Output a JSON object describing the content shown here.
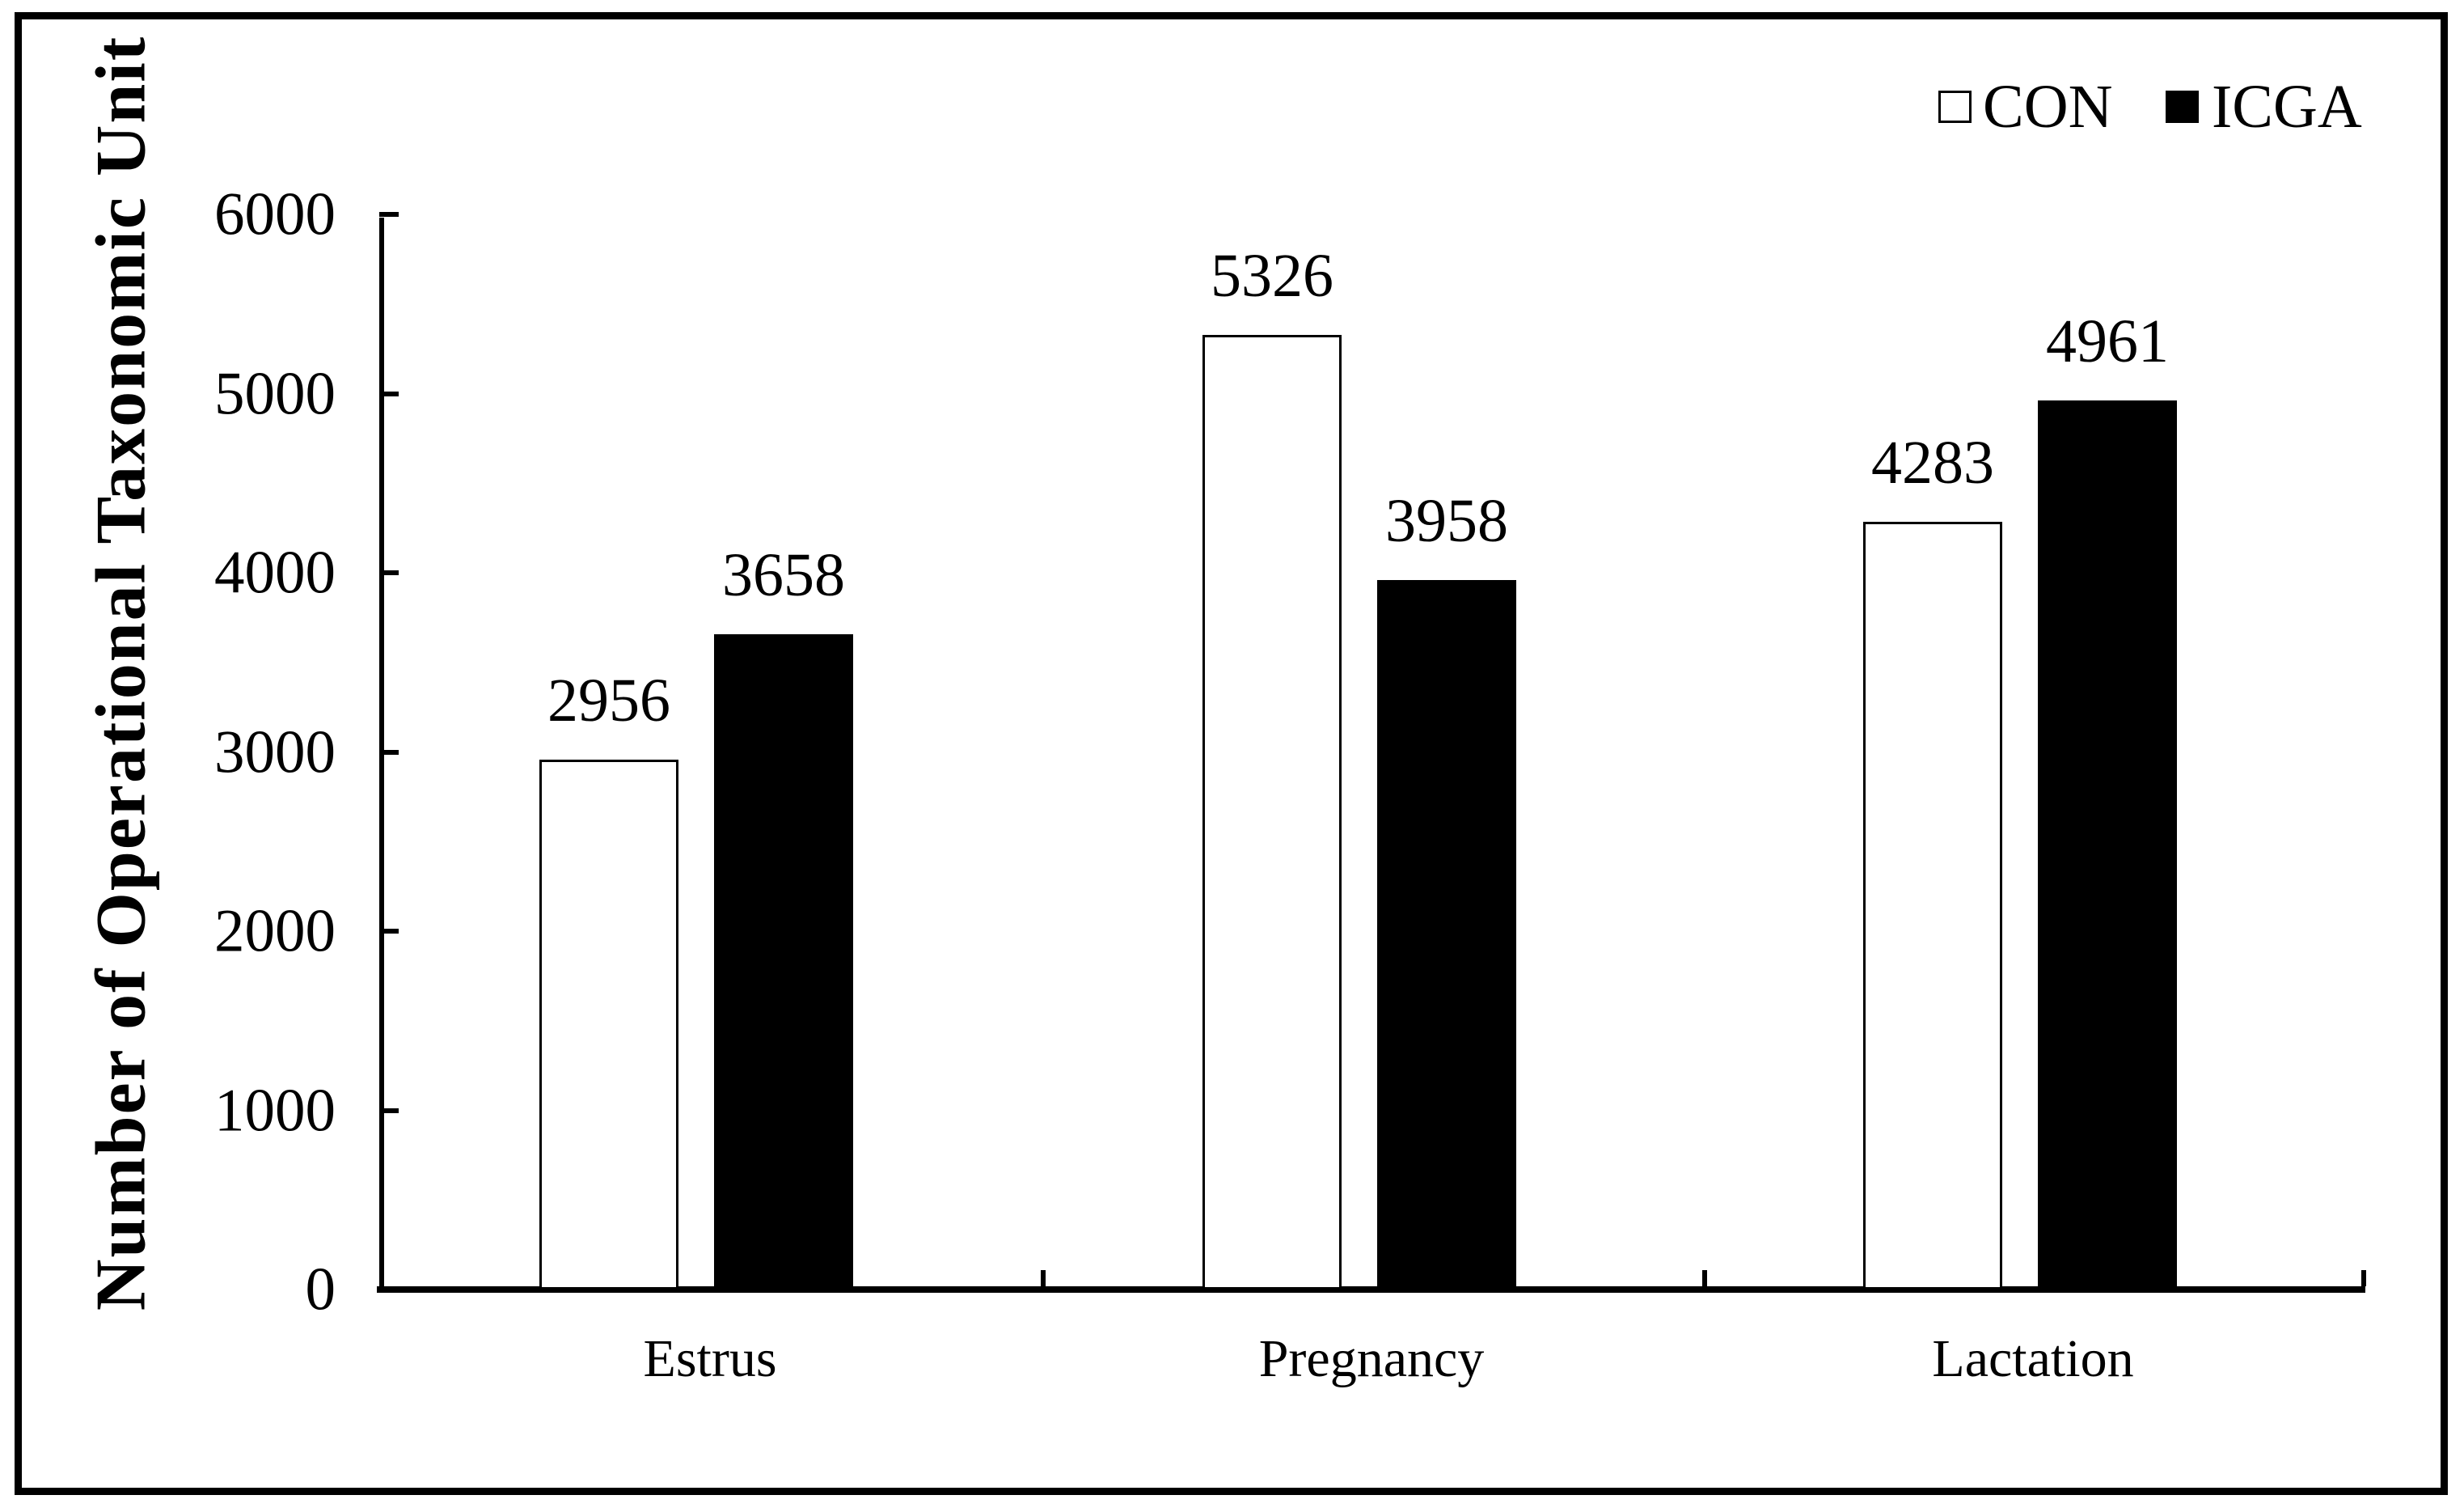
{
  "figure": {
    "background": "#ffffff",
    "border_color": "#000000"
  },
  "y_axis": {
    "title": "Number of Operational Taxonomic Unit",
    "tick_labels": [
      "6000",
      "5000",
      "4000",
      "3000",
      "2000",
      "1000",
      "0"
    ]
  },
  "legend": {
    "items": [
      {
        "label": "CON",
        "swatch_color": "#ffffff"
      },
      {
        "label": "ICGA",
        "swatch_color": "#000000"
      }
    ]
  },
  "chart_data": {
    "type": "bar",
    "title": "",
    "xlabel": "",
    "ylabel": "Number of Operational Taxonomic Unit",
    "categories": [
      "Estrus",
      "Pregnancy",
      "Lactation"
    ],
    "series": [
      {
        "name": "CON",
        "fill": "#ffffff",
        "values": [
          2956,
          5326,
          4283
        ]
      },
      {
        "name": "ICGA",
        "fill": "#000000",
        "values": [
          3658,
          3958,
          4961
        ]
      }
    ],
    "ylim": [
      0,
      6000
    ],
    "ytick_step": 1000,
    "grid": false,
    "legend_position": "top-right",
    "bar_value_labels": true
  }
}
